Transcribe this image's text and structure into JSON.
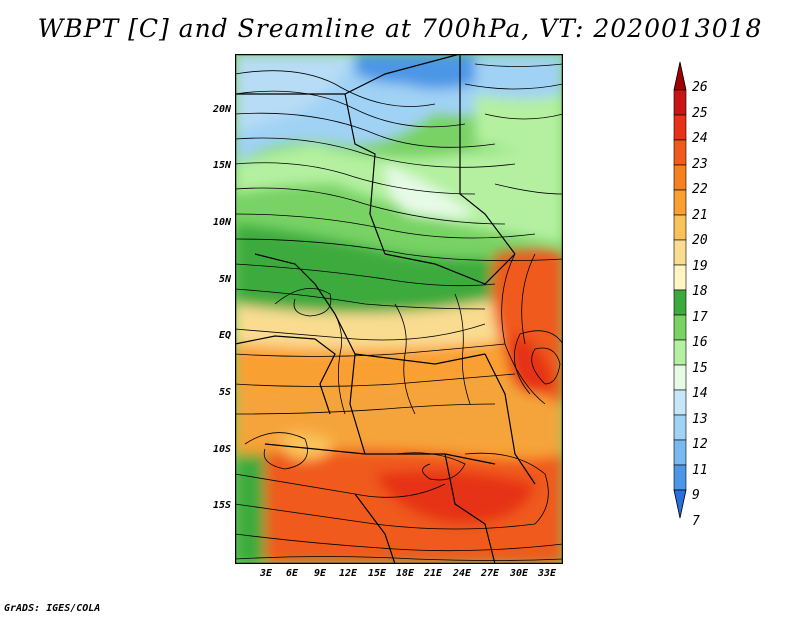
{
  "title": "WBPT [C] and Sreamline at 700hPa, VT: 2020013018",
  "footer": "GrADS: IGES/COLA",
  "map": {
    "lat_ticks": [
      "20N",
      "15N",
      "10N",
      "5N",
      "EQ",
      "5S",
      "10S",
      "15S"
    ],
    "lon_ticks": [
      "3E",
      "6E",
      "9E",
      "12E",
      "15E",
      "18E",
      "21E",
      "24E",
      "27E",
      "30E",
      "33E"
    ]
  },
  "colorbar": {
    "labels": [
      "26",
      "25",
      "24",
      "23",
      "22",
      "21",
      "20",
      "19",
      "18",
      "17",
      "16",
      "15",
      "14",
      "13",
      "12",
      "11",
      "9",
      "7"
    ],
    "colors": [
      "#a00000",
      "#c81414",
      "#e63219",
      "#f05a1e",
      "#f5821e",
      "#faa032",
      "#fac35a",
      "#fadc91",
      "#fff5c3",
      "#3caa3c",
      "#78d264",
      "#b4f0a0",
      "#e6fae6",
      "#c8e6fa",
      "#a0d2f5",
      "#78b9f0",
      "#4b96e6",
      "#2870dc"
    ]
  }
}
